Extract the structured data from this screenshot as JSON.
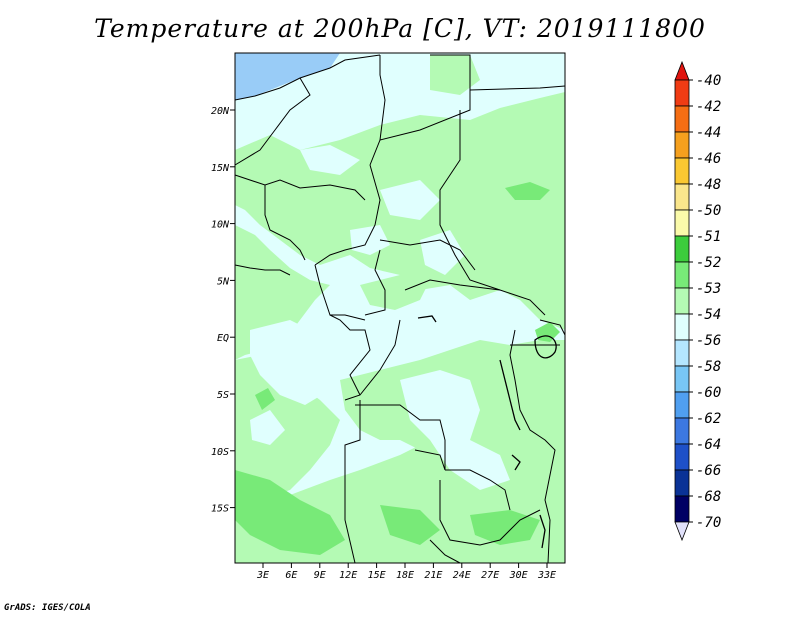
{
  "title": "Temperature at 200hPa [C], VT: 2019111800",
  "footer": "GrADS: IGES/COLA",
  "map": {
    "lat_ticks": [
      "20N",
      "15N",
      "10N",
      "5N",
      "EQ",
      "5S",
      "10S",
      "15S"
    ],
    "lon_ticks": [
      "3E",
      "6E",
      "9E",
      "12E",
      "15E",
      "18E",
      "21E",
      "24E",
      "27E",
      "30E",
      "33E"
    ],
    "colors": {
      "sea": "#99ccf7",
      "level_m54": "#e0fffe",
      "level_m53": "#b4fab4",
      "level_m52": "#78ea78",
      "border": "#000000"
    }
  },
  "colorbar": {
    "labels": [
      "-40",
      "-42",
      "-44",
      "-46",
      "-48",
      "-50",
      "-51",
      "-52",
      "-53",
      "-54",
      "-56",
      "-58",
      "-60",
      "-62",
      "-64",
      "-66",
      "-68",
      "-70"
    ],
    "colors": [
      "#e1140f",
      "#f03c14",
      "#f56e14",
      "#f5a01e",
      "#fac832",
      "#fae68c",
      "#fafaaa",
      "#3ccd3c",
      "#78ea78",
      "#b4fab4",
      "#e0fffe",
      "#b4e6ff",
      "#78c6f5",
      "#509ff0",
      "#3c78e1",
      "#1e50c8",
      "#0a3296",
      "#000064",
      "#e1e1fa"
    ]
  }
}
